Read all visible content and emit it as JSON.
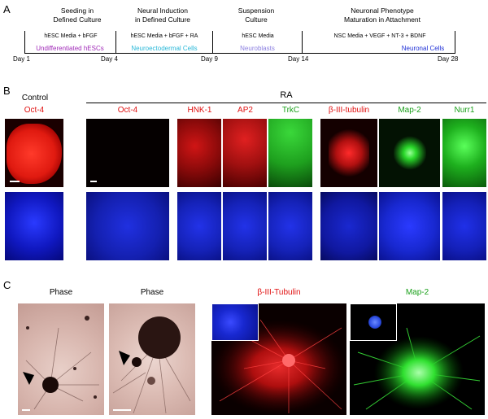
{
  "panelA": {
    "letter": "A",
    "stages": [
      {
        "line1": "Seeding in",
        "line2": "Defined Culture"
      },
      {
        "line1": "Neural Induction",
        "line2": "in Defined Culture"
      },
      {
        "line1": "Suspension",
        "line2": "Culture"
      },
      {
        "line1": "Neuronal Phenotype",
        "line2": "Maturation in Attachment"
      }
    ],
    "media": [
      "hESC Media + bFGF",
      "hESC Media + bFGF + RA",
      "hESC Media",
      "NSC Media + VEGF + NT-3 + BDNF"
    ],
    "cells": [
      {
        "text": "Undifferentiated hESCs",
        "color": "#a02ab8"
      },
      {
        "text": "Neuroectodermal Cells",
        "color": "#2ab8d8"
      },
      {
        "text": "Neuroblasts",
        "color": "#8a7ee0"
      },
      {
        "text": "Neuronal Cells",
        "color": "#1e2fd6"
      }
    ],
    "days": [
      "Day 1",
      "Day 4",
      "Day 9",
      "Day 14",
      "Day 28"
    ]
  },
  "panelB": {
    "letter": "B",
    "control_label": "Control",
    "ra_label": "RA",
    "markers": [
      {
        "text": "Oct-4",
        "color": "#e01010"
      },
      {
        "text": "Oct-4",
        "color": "#e01010"
      },
      {
        "text": "HNK-1",
        "color": "#e01010"
      },
      {
        "text": "AP2",
        "color": "#e01010"
      },
      {
        "text": "TrkC",
        "color": "#1aa01a"
      },
      {
        "text": "β-III-tubulin",
        "color": "#e01010"
      },
      {
        "text": "Map-2",
        "color": "#1aa01a"
      },
      {
        "text": "Nurr1",
        "color": "#1aa01a"
      }
    ]
  },
  "panelC": {
    "letter": "C",
    "labels": [
      {
        "text": "Phase",
        "color": "#000000"
      },
      {
        "text": "Phase",
        "color": "#000000"
      },
      {
        "text": "β-III-Tubulin",
        "color": "#e01010"
      },
      {
        "text": "Map-2",
        "color": "#1aa01a"
      }
    ]
  }
}
